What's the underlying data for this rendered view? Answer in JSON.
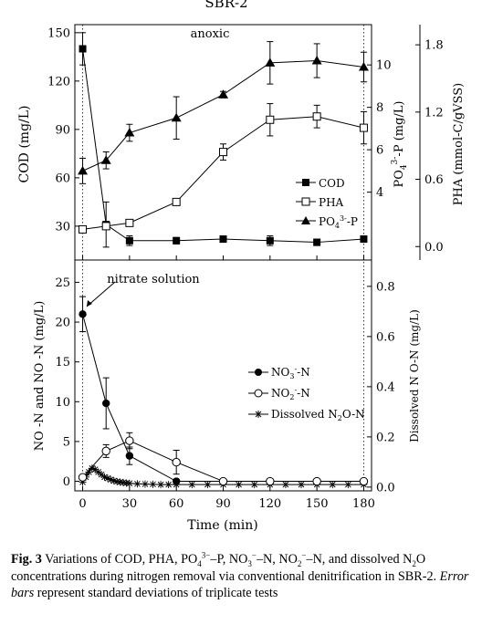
{
  "figure_title": "SBR-2",
  "chart_data": [
    {
      "type": "line",
      "panel": "top",
      "x": [
        0,
        15,
        30,
        60,
        90,
        120,
        150,
        180
      ],
      "xlim": [
        -5,
        185
      ],
      "axes": {
        "left": {
          "label": "COD (mg/L)",
          "lim": [
            9,
            155
          ],
          "ticks": [
            30,
            60,
            90,
            120,
            150
          ]
        },
        "right1": {
          "label_parts": [
            "PO",
            "4",
            "3-",
            "-P (mg/L)"
          ],
          "lim": [
            0.8,
            11.9
          ],
          "ticks": [
            4,
            6,
            8,
            10
          ]
        },
        "right2": {
          "label": "PHA  (mmol-C/gVSS)",
          "lim": [
            -0.12,
            1.98
          ],
          "ticks": [
            "0.0",
            "0.6",
            "1.2",
            "1.8"
          ]
        }
      },
      "annotations": {
        "anoxic": "anoxic"
      },
      "series": [
        {
          "name": "COD",
          "marker": "filled-square",
          "axis": "left",
          "x": [
            0,
            15,
            30,
            60,
            90,
            120,
            150,
            180
          ],
          "y": [
            140,
            31,
            21,
            21,
            22,
            21,
            20,
            22
          ],
          "err": [
            10,
            14,
            3,
            2,
            2,
            3,
            2,
            1
          ]
        },
        {
          "name": "PHA",
          "marker": "open-square",
          "axis": "left",
          "x": [
            0,
            15,
            30,
            60,
            90,
            120,
            150,
            180
          ],
          "y": [
            28,
            30,
            32,
            45,
            76,
            96,
            98,
            91
          ],
          "err": [
            1,
            1,
            2,
            2,
            5,
            10,
            7,
            10
          ]
        },
        {
          "name_parts": [
            "PO",
            "4",
            "3-",
            "-P"
          ],
          "marker": "filled-triangle",
          "axis": "right1",
          "x": [
            0,
            15,
            30,
            60,
            90,
            120,
            150,
            180
          ],
          "y": [
            5.0,
            5.5,
            6.8,
            7.5,
            8.6,
            10.1,
            10.2,
            9.9
          ],
          "err": [
            0.6,
            0.4,
            0.4,
            1.0,
            0.15,
            1.0,
            0.8,
            0.7
          ]
        }
      ]
    },
    {
      "type": "line",
      "panel": "bottom",
      "xlabel": "Time (min)",
      "xticks": [
        0,
        30,
        60,
        90,
        120,
        150,
        180
      ],
      "xlim": [
        -5,
        185
      ],
      "axes": {
        "left": {
          "label_text": "NO  -N and NO  -N  (mg/L)",
          "lim": [
            -1.2,
            27.8
          ],
          "ticks": [
            0,
            5,
            10,
            15,
            20,
            25
          ]
        },
        "right": {
          "label_text": "Dissolved N O-N (mg/L)",
          "lim": [
            -0.015,
            0.905
          ],
          "ticks": [
            "0.0",
            "0.2",
            "0.4",
            "0.6",
            "0.8"
          ]
        }
      },
      "annotations": {
        "nitrate": "nitrate solution"
      },
      "series": [
        {
          "name_parts": [
            "NO",
            "3",
            "-",
            "-N"
          ],
          "marker": "filled-circle",
          "axis": "left",
          "x": [
            0,
            15,
            30,
            60,
            90,
            120,
            150,
            180
          ],
          "y": [
            21,
            9.8,
            3.2,
            0,
            0,
            0,
            0,
            0
          ],
          "err": [
            2.2,
            3.2,
            1.1,
            0,
            0,
            0,
            0,
            0
          ]
        },
        {
          "name_parts": [
            "NO",
            "2",
            "-",
            "-N"
          ],
          "marker": "open-circle",
          "axis": "left",
          "x": [
            0,
            15,
            30,
            60,
            90,
            120,
            150,
            180
          ],
          "y": [
            0.5,
            3.8,
            5.1,
            2.4,
            0,
            0,
            0,
            0
          ],
          "err": [
            0.3,
            0.8,
            1.0,
            1.5,
            0,
            0,
            0,
            0
          ]
        },
        {
          "name_parts": [
            "Dissolved N",
            "2",
            "",
            "O-N"
          ],
          "marker": "asterisk",
          "axis": "right",
          "x": [
            0,
            2,
            4,
            6,
            8,
            10,
            12,
            14,
            16,
            18,
            20,
            22,
            24,
            26,
            28,
            30,
            35,
            40,
            45,
            50,
            55,
            60,
            70,
            80,
            90,
            100,
            110,
            120,
            130,
            140,
            150,
            160,
            170,
            180
          ],
          "y": [
            0.02,
            0.04,
            0.06,
            0.075,
            0.07,
            0.06,
            0.05,
            0.04,
            0.035,
            0.03,
            0.025,
            0.022,
            0.02,
            0.018,
            0.016,
            0.015,
            0.013,
            0.012,
            0.011,
            0.01,
            0.01,
            0.01,
            0.01,
            0.01,
            0.01,
            0.01,
            0.01,
            0.01,
            0.01,
            0.01,
            0.01,
            0.01,
            0.01,
            0.01
          ]
        }
      ]
    }
  ],
  "caption": {
    "label": "Fig. 3",
    "text_parts": [
      "Variations of COD, PHA, PO",
      "4",
      "3−",
      "–P, NO",
      "3",
      "−",
      "–N, NO",
      "2",
      "−",
      "–N, and dissolved N",
      "2",
      "",
      "O concentrations during nitrogen removal via conventional denitrification in SBR-2. ",
      "Error bars",
      " represent standard deviations of triplicate tests"
    ]
  }
}
